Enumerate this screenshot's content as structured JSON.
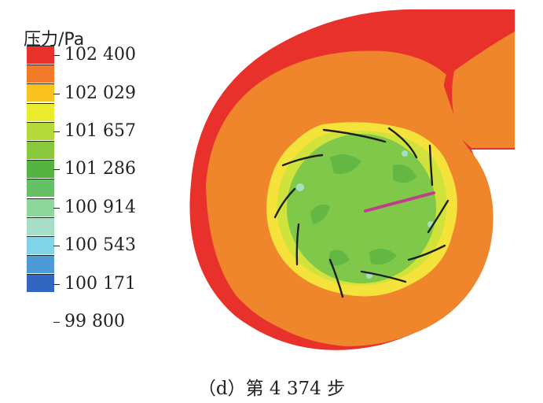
{
  "legend": {
    "title": "压力/Pa",
    "levels": [
      "#e8312a",
      "#f47a2a",
      "#f9c21e",
      "#ecec2e",
      "#b6d93a",
      "#88c83c",
      "#55b33f",
      "#66c166",
      "#8fd69a",
      "#a6dec8",
      "#7fd4e8",
      "#4d9bd6",
      "#3366c0"
    ],
    "labels": [
      "102 400",
      "102 029",
      "101 657",
      "101 286",
      "100 914",
      "100 543",
      "100 171",
      "99 800"
    ]
  },
  "caption": "（d）第 4 374 步",
  "diagram": {
    "colors": {
      "outer_high": "#e8312a",
      "volute": "#f0862c",
      "ring_yellow": "#f5e23a",
      "ring_lime": "#cfe33c",
      "impeller": "#7fc84a",
      "impeller_dark": "#63b743",
      "blade": "#1f1f1f",
      "probe": "#c23c8e"
    }
  }
}
